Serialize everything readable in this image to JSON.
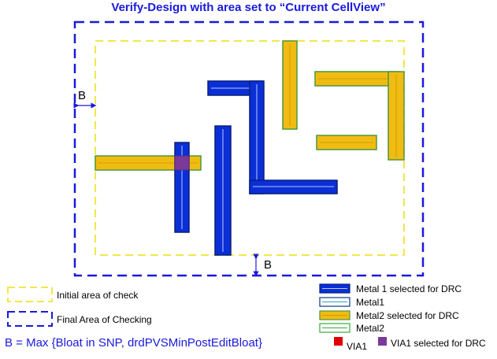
{
  "title": "Verify-Design with area set to “Current CellView”",
  "b_label_left": "B",
  "b_label_bottom": "B",
  "legend_left": {
    "initial_area": "Initial area of check",
    "final_area": "Final Area of Checking"
  },
  "formula": "B = Max {Bloat in SNP, drdPVSMinPostEditBloat}",
  "legend_right": {
    "metal1_selected": "Metal 1 selected for DRC",
    "metal1": "Metal1",
    "metal2_selected": "Metal2 selected for DRC",
    "metal2": "Metal2",
    "via1": "VIA1",
    "via1_selected": "VIA1 selected for DRC"
  },
  "colors": {
    "title": "#1a1adc",
    "final_area_border": "#1a1adc",
    "initial_area_border": "#f0e84a",
    "metal1_fill": "#0a2fd6",
    "metal1_border": "#0a1f7a",
    "metal2_fill": "#f2bb14",
    "metal2_border": "#4a9a3a",
    "via1": "#e00000",
    "via1_selected": "#7a3a9a"
  }
}
